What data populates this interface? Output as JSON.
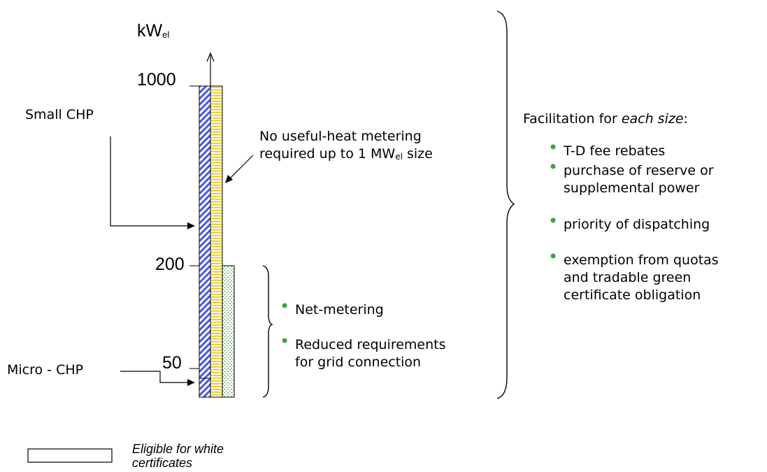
{
  "axis": {
    "unit_main": "kW",
    "unit_sub": "el"
  },
  "ticks": [
    {
      "value": 1000,
      "label": "1000"
    },
    {
      "value": 200,
      "label": "200"
    },
    {
      "value": 50,
      "label": "50"
    }
  ],
  "labels": {
    "small_chp": "Small CHP",
    "micro_chp": "Micro - CHP",
    "no_metering_line1": "No useful-heat metering",
    "no_metering_line2_a": "required up to 1 MW",
    "no_metering_line2_sub": "el",
    "no_metering_line2_b": " size"
  },
  "middle_list": [
    [
      "Net-metering"
    ],
    [
      "Reduced requirements",
      "for grid connection"
    ]
  ],
  "facilitation": {
    "title_a": "Facilitation for ",
    "title_italic": "each size",
    "title_b": ":",
    "items": [
      [
        "T-D fee rebates"
      ],
      [
        "purchase of reserve or",
        "supplemental power"
      ],
      [
        "priority of dispatching"
      ],
      [
        "exemption from quotas",
        "and tradable green",
        "certificate obligation"
      ]
    ]
  },
  "legend": {
    "line1": "Eligible for white",
    "line2": "certificates"
  },
  "colors": {
    "bullet": "#3aa63a",
    "blue_hatch": "#4a5ae0",
    "yellow_hatch": "#e6c418",
    "green_dots": "#2e7d32"
  }
}
